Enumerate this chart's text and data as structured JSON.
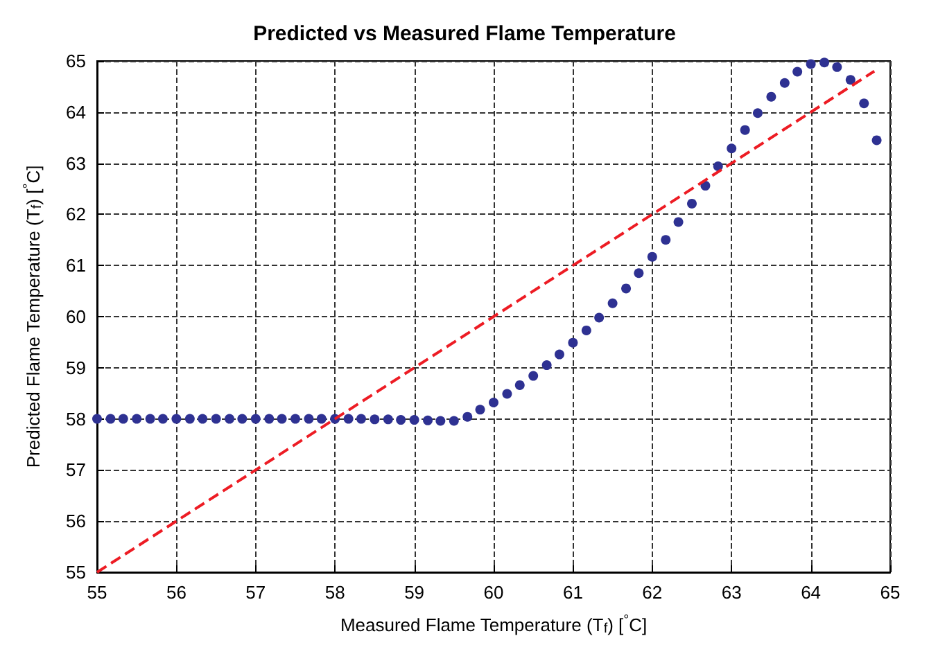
{
  "chart_data": {
    "type": "scatter",
    "title": "Predicted vs Measured Flame Temperature",
    "xlabel": "Measured Flame Temperature (T$_{f}$) [$^{°}$C]",
    "ylabel": "Predicted Flame Temperature (T$_{f}$) [$^{°}$C]",
    "xlim": [
      55,
      65
    ],
    "ylim": [
      55,
      65
    ],
    "xticks": [
      55,
      56,
      57,
      58,
      59,
      60,
      61,
      62,
      63,
      64,
      65
    ],
    "yticks": [
      55,
      56,
      57,
      58,
      59,
      60,
      61,
      62,
      63,
      64,
      65
    ],
    "grid": true,
    "marker": "circle",
    "series": [
      {
        "color": "#2e3192",
        "x": [
          55,
          55.17,
          55.33,
          55.5,
          55.67,
          55.83,
          56,
          56.17,
          56.33,
          56.5,
          56.67,
          56.83,
          57,
          57.17,
          57.33,
          57.5,
          57.67,
          57.83,
          58,
          58.17,
          58.33,
          58.5,
          58.67,
          58.83,
          59,
          59.17,
          59.33,
          59.5,
          59.67,
          59.83,
          60,
          60.17,
          60.33,
          60.5,
          60.67,
          60.83,
          61,
          61.17,
          61.33,
          61.5,
          61.67,
          61.83,
          62,
          62.17,
          62.33,
          62.5,
          62.67,
          62.83,
          63,
          63.17,
          63.33,
          63.5,
          63.67,
          63.83,
          64,
          64.17,
          64.33,
          64.5,
          64.67,
          64.83
        ],
        "values": [
          58,
          58,
          58,
          58,
          58,
          58,
          58,
          58,
          58,
          58,
          58,
          58,
          58,
          58,
          58,
          58,
          58,
          58,
          58,
          58,
          58,
          57.99,
          57.99,
          57.98,
          57.98,
          57.97,
          57.96,
          57.96,
          58.04,
          58.18,
          58.32,
          58.49,
          58.66,
          58.84,
          59.05,
          59.26,
          59.49,
          59.73,
          59.98,
          60.26,
          60.55,
          60.85,
          61.17,
          61.5,
          61.85,
          62.21,
          62.56,
          62.94,
          63.29,
          63.65,
          63.98,
          64.3,
          64.57,
          64.79,
          64.94,
          64.97,
          64.88,
          64.63,
          64.17,
          63.45
        ]
      },
      {
        "type": "line",
        "color": "#ed1c24",
        "line_style": "dashed",
        "marker": "none",
        "x": [
          55,
          64.8
        ],
        "values": [
          55,
          64.8
        ]
      }
    ]
  }
}
